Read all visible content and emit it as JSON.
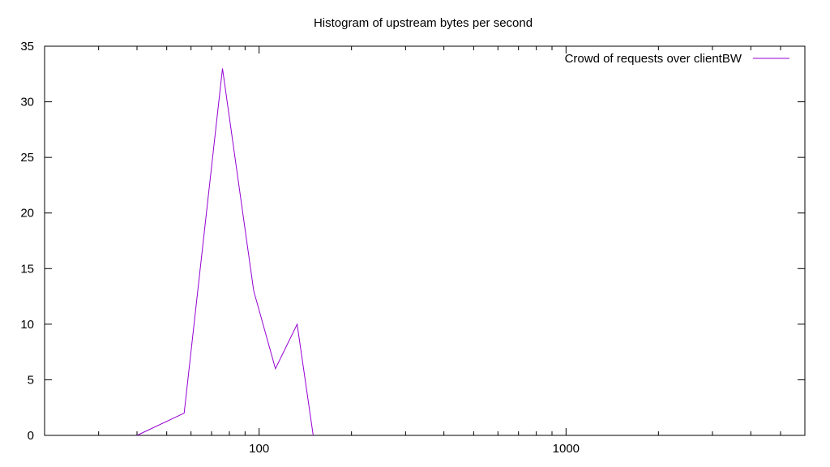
{
  "chart_data": {
    "type": "line",
    "title": "Histogram of upstream bytes per second",
    "xlabel": "",
    "ylabel": "",
    "xscale": "log",
    "xlim": [
      20,
      6000
    ],
    "ylim": [
      0,
      35
    ],
    "xticks": [
      {
        "value": 100,
        "label": "100"
      },
      {
        "value": 1000,
        "label": "1000"
      }
    ],
    "yticks": [
      0,
      5,
      10,
      15,
      20,
      25,
      30,
      35
    ],
    "grid": false,
    "legend_position": "top-right",
    "series": [
      {
        "name": "Crowd of requests over clientBW",
        "color": "#9400d3",
        "x": [
          40,
          57,
          76,
          96,
          113,
          133,
          150
        ],
        "y": [
          0,
          2,
          33,
          13,
          6,
          10,
          0
        ]
      }
    ]
  }
}
